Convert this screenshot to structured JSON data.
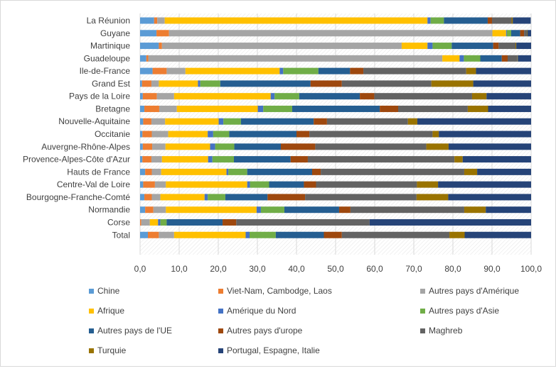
{
  "chart_data": {
    "type": "bar",
    "orientation": "horizontal",
    "stacked": "percent",
    "title": "",
    "xlabel": "",
    "ylabel": "",
    "xlim": [
      0,
      100
    ],
    "xticks": [
      "0,0",
      "10,0",
      "20,0",
      "30,0",
      "40,0",
      "50,0",
      "60,0",
      "70,0",
      "80,0",
      "90,0",
      "100,0"
    ],
    "grid": true,
    "legend_position": "bottom",
    "categories": [
      "La Réunion",
      "Guyane",
      "Martinique",
      "Guadeloupe",
      "Ile-de-France",
      "Grand Est",
      "Pays de la Loire",
      "Bretagne",
      "Nouvelle-Aquitaine",
      "Occitanie",
      "Auvergne-Rhône-Alpes",
      "Provence-Alpes-Côte d'Azur",
      "Hauts de France",
      "Centre-Val de Loire",
      "Bourgogne-Franche-Comté",
      "Normandie",
      "Corse",
      "Total"
    ],
    "series": [
      {
        "name": "Chine",
        "color": "#5B9BD5",
        "values": [
          3.6,
          4.2,
          4.8,
          1.6,
          3.2,
          0.5,
          0.7,
          1.1,
          0.8,
          0.6,
          0.7,
          0.6,
          1.3,
          0.8,
          1.1,
          1.3,
          0.0,
          2.0
        ]
      },
      {
        "name": "Viet-Nam, Cambodge, Laos",
        "color": "#ED7D31",
        "values": [
          0.8,
          3.2,
          0.8,
          0.5,
          3.6,
          2.4,
          3.6,
          3.8,
          2.1,
          2.4,
          2.4,
          2.3,
          1.7,
          3.0,
          1.9,
          2.1,
          0.3,
          2.8
        ]
      },
      {
        "name": "Autres pays d'Amérique",
        "color": "#A5A5A5",
        "values": [
          1.9,
          82.7,
          61.3,
          75.2,
          4.8,
          1.9,
          4.4,
          4.5,
          3.5,
          4.2,
          3.4,
          2.7,
          2.4,
          2.8,
          2.2,
          3.2,
          2.2,
          3.9
        ]
      },
      {
        "name": "Afrique",
        "color": "#FFC000",
        "values": [
          67.2,
          3.5,
          6.6,
          4.4,
          24.1,
          10.0,
          24.7,
          20.7,
          13.7,
          10.1,
          11.4,
          11.8,
          16.7,
          20.8,
          11.3,
          23.2,
          2.1,
          18.3
        ]
      },
      {
        "name": "Amérique du Nord",
        "color": "#4472C4",
        "values": [
          0.8,
          0.2,
          1.3,
          1.1,
          0.9,
          0.6,
          1.0,
          1.4,
          1.2,
          1.4,
          1.3,
          1.1,
          0.5,
          0.7,
          0.8,
          1.1,
          0.6,
          1.0
        ]
      },
      {
        "name": "Autres pays d'Asie",
        "color": "#70AD47",
        "values": [
          3.4,
          1.1,
          4.9,
          4.2,
          9.0,
          5.1,
          6.3,
          7.4,
          4.5,
          4.1,
          4.9,
          5.5,
          4.8,
          4.9,
          4.5,
          6.0,
          1.6,
          6.7
        ]
      },
      {
        "name": "Autres pays de l'UE",
        "color": "#255E91",
        "values": [
          11.2,
          2.3,
          10.6,
          5.5,
          8.1,
          23.1,
          15.5,
          22.4,
          18.6,
          17.2,
          11.9,
          14.5,
          16.6,
          8.9,
          10.8,
          14.0,
          14.3,
          12.3
        ]
      },
      {
        "name": "Autres pays d'urope",
        "color": "#9E480E",
        "values": [
          1.1,
          1.0,
          1.4,
          1.5,
          3.4,
          8.0,
          3.7,
          4.7,
          3.4,
          3.3,
          8.8,
          4.4,
          2.2,
          3.1,
          9.6,
          2.9,
          3.5,
          4.6
        ]
      },
      {
        "name": "Maghreb",
        "color": "#636363",
        "values": [
          5.0,
          0.8,
          4.3,
          2.5,
          26.3,
          22.9,
          25.0,
          17.8,
          20.7,
          31.5,
          28.4,
          37.5,
          36.7,
          25.8,
          28.5,
          29.1,
          34.1,
          27.5
        ]
      },
      {
        "name": "Turquie",
        "color": "#997300",
        "values": [
          0.3,
          0.1,
          0.2,
          0.1,
          2.5,
          10.7,
          3.7,
          5.2,
          2.4,
          1.6,
          5.7,
          2.1,
          3.3,
          5.4,
          8.1,
          5.5,
          0.0,
          3.9
        ]
      },
      {
        "name": "Portugal, Espagne, Italie",
        "color": "#264478",
        "values": [
          4.6,
          0.9,
          3.8,
          3.4,
          14.1,
          14.8,
          11.4,
          11.0,
          29.1,
          23.6,
          21.1,
          17.5,
          13.8,
          23.8,
          21.2,
          11.6,
          41.3,
          17.0
        ]
      }
    ]
  }
}
